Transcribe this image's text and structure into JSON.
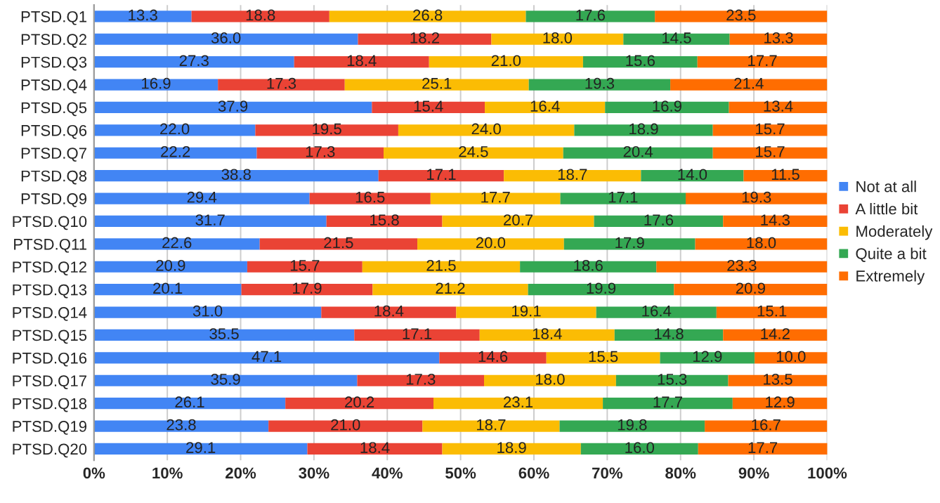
{
  "chart_data": {
    "type": "bar",
    "orientation": "horizontal",
    "stacked": true,
    "grid": "x",
    "legend": "right",
    "categories": [
      "PTSD.Q1",
      "PTSD.Q2",
      "PTSD.Q3",
      "PTSD.Q4",
      "PTSD.Q5",
      "PTSD.Q6",
      "PTSD.Q7",
      "PTSD.Q8",
      "PTSD.Q9",
      "PTSD.Q10",
      "PTSD.Q11",
      "PTSD.Q12",
      "PTSD.Q13",
      "PTSD.Q14",
      "PTSD.Q15",
      "PTSD.Q16",
      "PTSD.Q17",
      "PTSD.Q18",
      "PTSD.Q19",
      "PTSD.Q20"
    ],
    "xlim": [
      0,
      100
    ],
    "xticks": [
      {
        "value": 0,
        "label": "0%"
      },
      {
        "value": 10,
        "label": "10%"
      },
      {
        "value": 20,
        "label": "20%"
      },
      {
        "value": 30,
        "label": "30%"
      },
      {
        "value": 40,
        "label": "40%"
      },
      {
        "value": 50,
        "label": "50%"
      },
      {
        "value": 60,
        "label": "60%"
      },
      {
        "value": 70,
        "label": "70%"
      },
      {
        "value": 80,
        "label": "80%"
      },
      {
        "value": 90,
        "label": "90%"
      },
      {
        "value": 100,
        "label": "100%"
      }
    ],
    "series": [
      {
        "name": "Not at all",
        "color": "#4285f4",
        "values": [
          13.3,
          36.0,
          27.3,
          16.9,
          37.9,
          22.0,
          22.2,
          38.8,
          29.4,
          31.7,
          22.6,
          20.9,
          20.1,
          31.0,
          35.5,
          47.1,
          35.9,
          26.1,
          23.8,
          29.1
        ],
        "value_labels": [
          "13.3",
          "36.0",
          "27.3",
          "16.9",
          "37.9",
          "22.0",
          "22.2",
          "38.8",
          "29.4",
          "31.7",
          "22.6",
          "20.9",
          "20.1",
          "31.0",
          "35.5",
          "47.1",
          "35.9",
          "26.1",
          "23.8",
          "29.1"
        ]
      },
      {
        "name": "A little bit",
        "color": "#ea4335",
        "values": [
          18.8,
          18.2,
          18.4,
          17.3,
          15.4,
          19.5,
          17.3,
          17.1,
          16.5,
          15.8,
          21.5,
          15.7,
          17.9,
          18.4,
          17.1,
          14.6,
          17.3,
          20.2,
          21.0,
          18.4
        ],
        "value_labels": [
          "18.8",
          "18.2",
          "18.4",
          "17.3",
          "15.4",
          "19.5",
          "17.3",
          "17.1",
          "16.5",
          "15.8",
          "21.5",
          "15.7",
          "17.9",
          "18.4",
          "17.1",
          "14.6",
          "17.3",
          "20.2",
          "21.0",
          "18.4"
        ]
      },
      {
        "name": "Moderately",
        "color": "#fbbc04",
        "values": [
          26.8,
          18.0,
          21.0,
          25.1,
          16.4,
          24.0,
          24.5,
          18.7,
          17.7,
          20.7,
          20.0,
          21.5,
          21.2,
          19.1,
          18.4,
          15.5,
          18.0,
          23.1,
          18.7,
          18.9
        ],
        "value_labels": [
          "26.8",
          "18.0",
          "21.0",
          "25.1",
          "16.4",
          "24.0",
          "24.5",
          "18.7",
          "17.7",
          "20.7",
          "20.0",
          "21.5",
          "21.2",
          "19.1",
          "18.4",
          "15.5",
          "18.0",
          "23.1",
          "18.7",
          "18.9"
        ]
      },
      {
        "name": "Quite a bit",
        "color": "#34a853",
        "values": [
          17.6,
          14.5,
          15.6,
          19.3,
          16.9,
          18.9,
          20.4,
          14.0,
          17.1,
          17.6,
          17.9,
          18.6,
          19.9,
          16.4,
          14.8,
          12.9,
          15.3,
          17.7,
          19.8,
          16.0
        ],
        "value_labels": [
          "17.6",
          "14.5",
          "15.6",
          "19.3",
          "16.9",
          "18.9",
          "20.4",
          "14.0",
          "17.1",
          "17.6",
          "17.9",
          "18.6",
          "19.9",
          "16.4",
          "14.8",
          "12.9",
          "15.3",
          "17.7",
          "19.8",
          "16.0"
        ]
      },
      {
        "name": "Extremely",
        "color": "#ff6d01",
        "values": [
          23.5,
          13.3,
          17.7,
          21.4,
          13.4,
          15.7,
          15.7,
          11.5,
          19.3,
          14.3,
          18.0,
          23.3,
          20.9,
          15.1,
          14.2,
          10.0,
          13.5,
          12.9,
          16.7,
          17.7
        ],
        "value_labels": [
          "23.5",
          "13.3",
          "17.7",
          "21.4",
          "13.4",
          "15.7",
          "15.7",
          "11.5",
          "19.3",
          "14.3",
          "18.0",
          "23.3",
          "20.9",
          "15.1",
          "14.2",
          "10.0",
          "13.5",
          "12.9",
          "16.7",
          "17.7"
        ]
      }
    ]
  }
}
